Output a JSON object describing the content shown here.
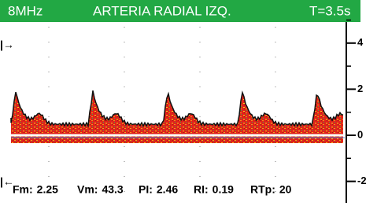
{
  "header": {
    "frequency": "8MHz",
    "title": "ARTERIA RADIAL IZQ.",
    "time": "T=3.5s"
  },
  "scale": {
    "ticks": [
      4,
      2,
      0,
      -2
    ]
  },
  "measurements": [
    {
      "label": "Fm:",
      "value": 2.25
    },
    {
      "label": "Vm:",
      "value": 43.3
    },
    {
      "label": "PI:",
      "value": 2.46
    },
    {
      "label": "RI:",
      "value": 0.19
    },
    {
      "label": "RTp:",
      "value": 20
    }
  ]
}
